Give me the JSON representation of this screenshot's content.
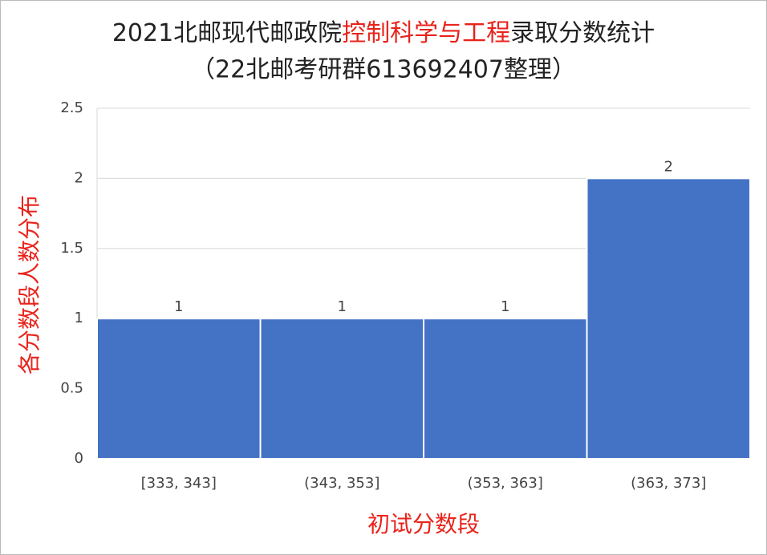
{
  "chart_data": {
    "type": "bar",
    "title": [
      {
        "text": "2021北邮现代邮政院",
        "color": "#222222"
      },
      {
        "text": "控制科学与工程",
        "color": "#e8231b"
      },
      {
        "text": "录取分数统计",
        "color": "#222222"
      }
    ],
    "subtitle": "（22北邮考研群613692407整理）",
    "xlabel": "初试分数段",
    "ylabel": "各分数段人数分布",
    "axis_label_color": "#e8231b",
    "categories": [
      "[333, 343]",
      "(343, 353]",
      "(353, 363]",
      "(363, 373]"
    ],
    "values": [
      1,
      1,
      1,
      2
    ],
    "color": "#4472c4",
    "ylim": [
      0,
      2.5
    ],
    "yticks": [
      0,
      0.5,
      1,
      1.5,
      2,
      2.5
    ],
    "grid": true
  }
}
